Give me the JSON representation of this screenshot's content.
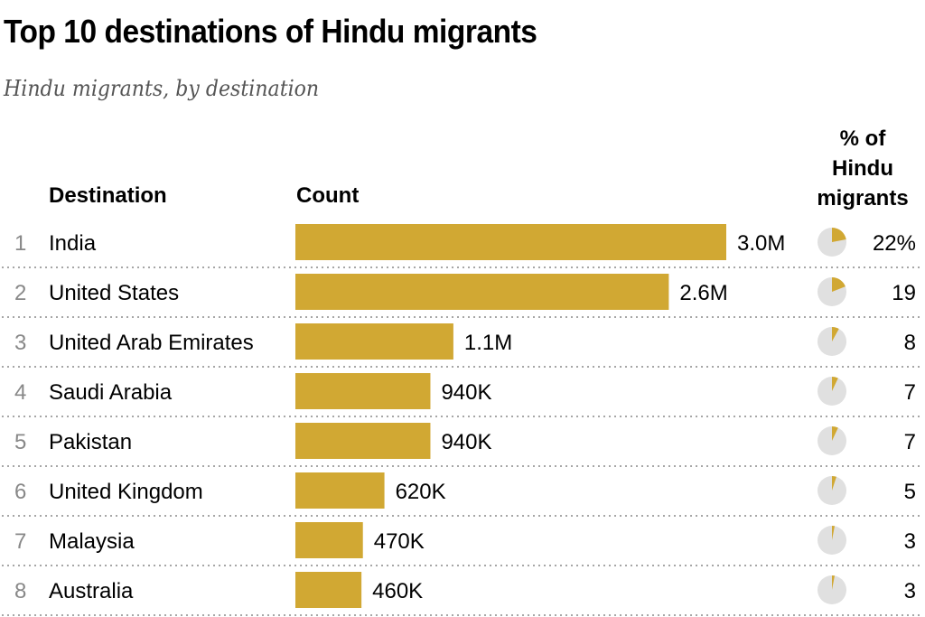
{
  "title": "Top 10 destinations of Hindu migrants",
  "subtitle": "Hindu migrants, by destination",
  "headers": {
    "destination": "Destination",
    "count": "Count",
    "pct_line1": "% of",
    "pct_line2": "Hindu",
    "pct_line3": "migrants"
  },
  "colors": {
    "bar": "#d1a833",
    "pie_bg": "#e0e0e0",
    "rank": "#888888",
    "divider": "#888888"
  },
  "chart_data": {
    "type": "bar",
    "orientation": "horizontal",
    "ranks": [
      "1",
      "2",
      "3",
      "4",
      "5",
      "6",
      "7",
      "8"
    ],
    "categories": [
      "India",
      "United States",
      "United Arab Emirates",
      "Saudi Arabia",
      "Pakistan",
      "United Kingdom",
      "Malaysia",
      "Australia"
    ],
    "values": [
      3000000,
      2600000,
      1100000,
      940000,
      940000,
      620000,
      470000,
      460000
    ],
    "value_labels": [
      "3.0M",
      "2.6M",
      "1.1M",
      "940K",
      "940K",
      "620K",
      "470K",
      "460K"
    ],
    "percent": [
      22,
      19,
      8,
      7,
      7,
      5,
      3,
      3
    ],
    "percent_labels": [
      "22%",
      "19",
      "8",
      "7",
      "7",
      "5",
      "3",
      "3"
    ]
  }
}
